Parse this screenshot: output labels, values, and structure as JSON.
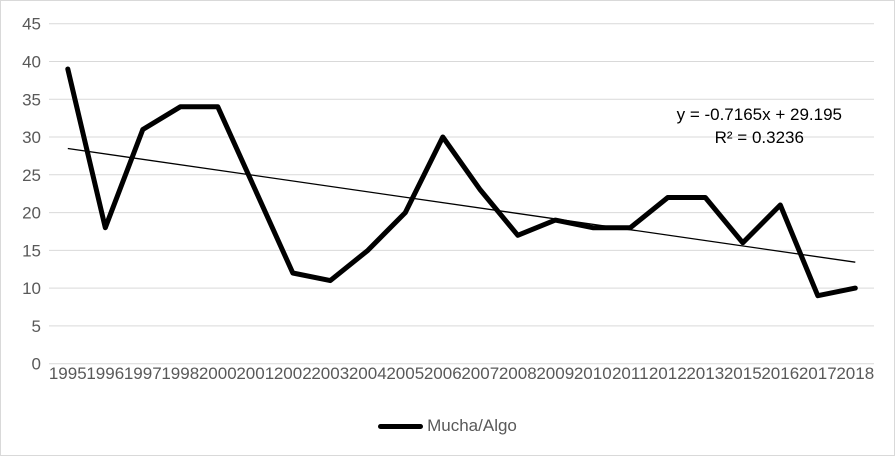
{
  "chart_data": {
    "type": "line",
    "title": "",
    "xlabel": "",
    "ylabel": "",
    "categories": [
      "1995",
      "1996",
      "1997",
      "1998",
      "2000",
      "2001",
      "2002",
      "2003",
      "2004",
      "2005",
      "2006",
      "2007",
      "2008",
      "2009",
      "2010",
      "2011",
      "2012",
      "2013",
      "2015",
      "2016",
      "2017",
      "2018"
    ],
    "series": [
      {
        "name": "Mucha/Algo",
        "values": [
          39,
          18,
          31,
          34,
          34,
          23,
          12,
          11,
          15,
          20,
          30,
          23,
          17,
          19,
          18,
          18,
          22,
          22,
          16,
          21,
          9,
          10
        ],
        "color": "#000000",
        "stroke_width": 5
      }
    ],
    "trendline": {
      "slope": -0.7165,
      "intercept": 29.195,
      "r_squared": 0.3236,
      "color": "#000000",
      "stroke_width": 1.3,
      "label_line1": "y = -0.7165x + 29.195",
      "label_line2": "R² = 0.3236"
    },
    "yticks": [
      0,
      5,
      10,
      15,
      20,
      25,
      30,
      35,
      40,
      45
    ],
    "ylim": [
      0,
      45
    ],
    "grid": "horizontal-only",
    "legend_position": "bottom",
    "colors": {
      "gridline": "#D9D9D9",
      "tick_label": "#595959",
      "legend_label": "#595959",
      "annotation_text": "#000000",
      "frame_border": "#D9D9D9",
      "background": "#FFFFFF"
    }
  }
}
